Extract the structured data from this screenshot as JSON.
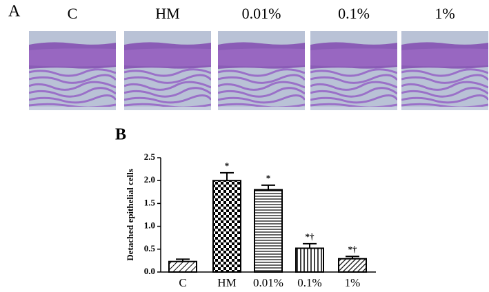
{
  "panel_a": {
    "label": "A",
    "images": [
      "C",
      "HM",
      "0.01%",
      "0.1%",
      "1%"
    ]
  },
  "chart_data": {
    "type": "bar",
    "panel_label": "B",
    "y_label": "Detached epithelial cells",
    "categories": [
      "C",
      "HM",
      "0.01%",
      "0.1%",
      "1%"
    ],
    "values": [
      0.23,
      2.0,
      1.8,
      0.52,
      0.29
    ],
    "errors": [
      0.05,
      0.17,
      0.1,
      0.1,
      0.05
    ],
    "annotations": [
      null,
      "*",
      "*",
      "*†",
      "*†"
    ],
    "color": "#000000",
    "ylim": [
      0,
      2.5
    ],
    "yticks": [
      {
        "value": 0,
        "label": "0.0"
      },
      {
        "value": 0.5,
        "label": "0.5"
      },
      {
        "value": 1,
        "label": "1.0"
      },
      {
        "value": 1.5,
        "label": "1.5"
      },
      {
        "value": 2,
        "label": "2.0"
      },
      {
        "value": 2.5,
        "label": "2.5"
      }
    ]
  }
}
